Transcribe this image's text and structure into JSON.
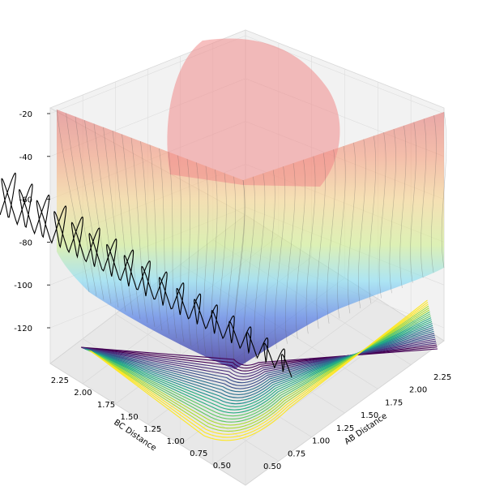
{
  "chart_data": {
    "type": "surface3d",
    "title": "",
    "xlabel": "AB Distance",
    "ylabel": "BC Distance",
    "zlabel": "",
    "xlim": [
      0.5,
      2.4
    ],
    "ylim": [
      0.4,
      2.4
    ],
    "zlim": [
      -140,
      -20
    ],
    "x_ticks": [
      "0.50",
      "0.75",
      "1.00",
      "1.25",
      "1.50",
      "1.75",
      "2.00",
      "2.25"
    ],
    "y_ticks": [
      "0.50",
      "0.75",
      "1.00",
      "1.25",
      "1.50",
      "1.75",
      "2.00",
      "2.25"
    ],
    "z_ticks": [
      "-20",
      "-40",
      "-60",
      "-80",
      "-100",
      "-120"
    ],
    "grid": true,
    "colormap_surface": "jet",
    "colormap_contour": "viridis",
    "trajectory": {
      "color": "#000000",
      "description_visible": false
    }
  }
}
